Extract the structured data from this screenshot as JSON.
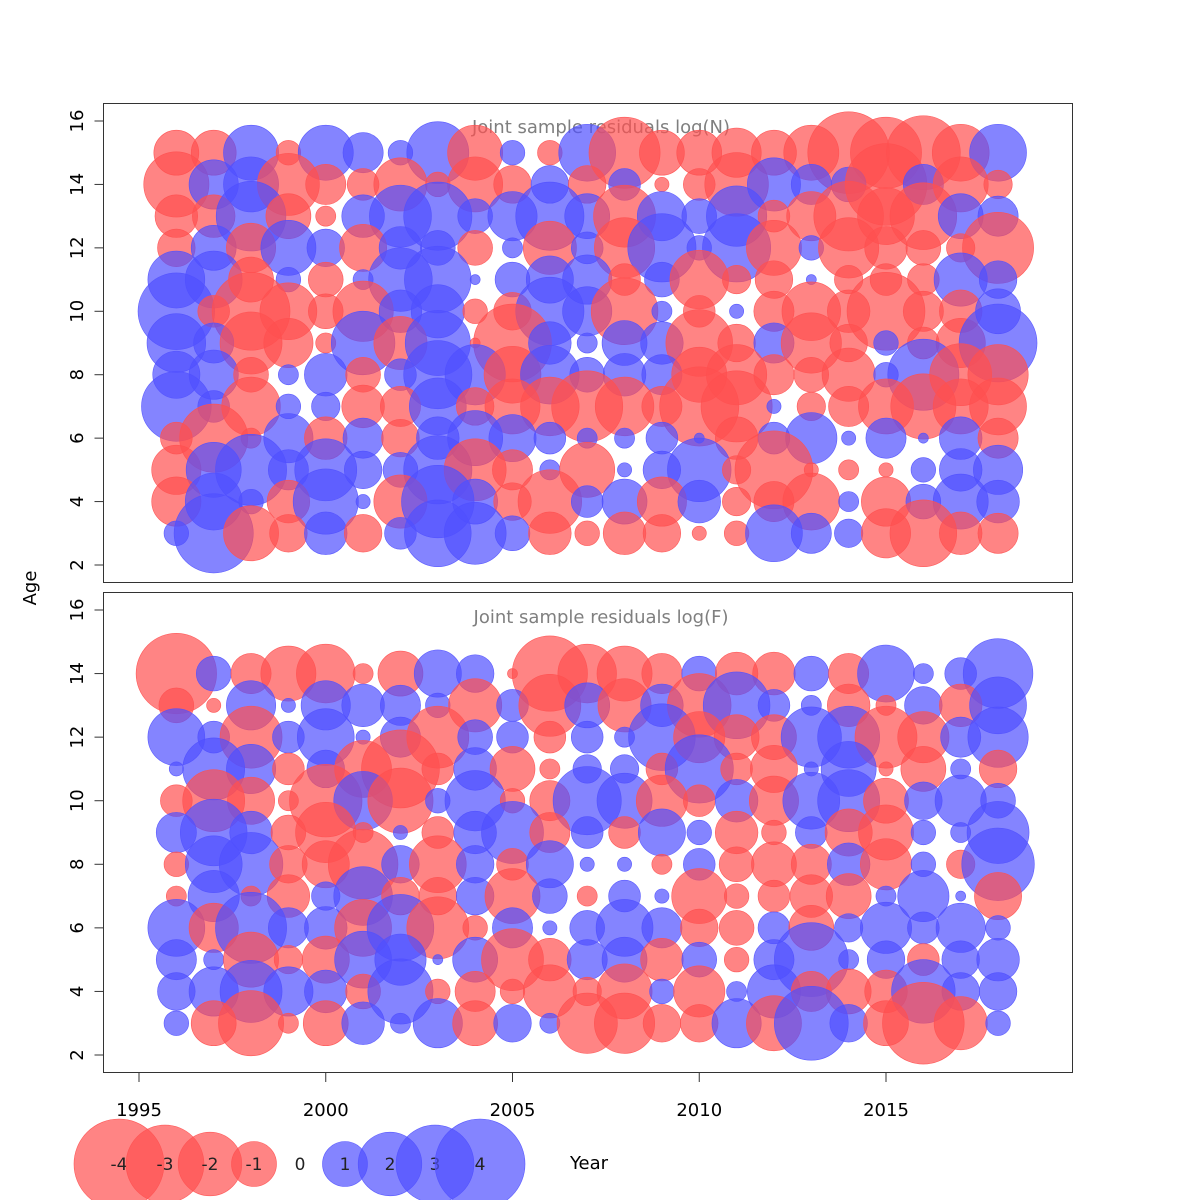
{
  "chart_data": {
    "type": "scatter",
    "subtype": "bubble",
    "xlabel": "Year",
    "ylabel": "Age",
    "xlim": [
      1994,
      2020
    ],
    "ylim": [
      1.5,
      16.5
    ],
    "x_ticks": [
      1995,
      2000,
      2005,
      2010,
      2015
    ],
    "y_ticks": [
      2,
      4,
      6,
      8,
      10,
      12,
      14,
      16
    ],
    "years": [
      1996,
      1997,
      1998,
      1999,
      2000,
      2001,
      2002,
      2003,
      2004,
      2005,
      2006,
      2007,
      2008,
      2009,
      2010,
      2011,
      2012,
      2013,
      2014,
      2015,
      2016,
      2017,
      2018
    ],
    "colors": {
      "positive": "#5050ff",
      "negative": "#ff5050"
    },
    "legend": {
      "values": [
        -4,
        -3,
        -2,
        -1,
        0,
        1,
        2,
        3,
        4
      ],
      "labels": [
        "-4",
        "-3",
        "-2",
        "-1",
        "0",
        "1",
        "2",
        "3",
        "4"
      ],
      "placement": "bottom"
    },
    "panels": [
      {
        "title": "Joint sample residuals log(N)",
        "ages": [
          15,
          14,
          13,
          12,
          11,
          10,
          9,
          8,
          7,
          6,
          5,
          4,
          3
        ],
        "residuals": [
          [
            -1.0,
            -1.0,
            1.5,
            -0.3,
            1.5,
            0.8,
            0.3,
            1.9,
            -1.5,
            0.3,
            -0.3,
            1.6,
            -2.5,
            -1.0,
            -1.0,
            -1.2,
            -1.0,
            -1.5,
            -3.3,
            -2.5,
            -2.7,
            -1.6,
            1.6
          ],
          [
            -2.1,
            1.2,
            1.5,
            -1.9,
            -0.8,
            -0.5,
            -1.4,
            -0.3,
            -1.5,
            -0.7,
            0.7,
            -0.7,
            0.5,
            -0.1,
            -0.5,
            -2.0,
            1.4,
            0.8,
            0.6,
            -3.3,
            0.8,
            -1.5,
            -0.4
          ],
          [
            -0.9,
            -0.9,
            2.4,
            -1.0,
            -0.2,
            0.9,
            1.9,
            2.3,
            0.6,
            1.2,
            2.3,
            1.0,
            -1.9,
            1.2,
            0.6,
            1.8,
            -0.5,
            -1.2,
            -2.4,
            -1.6,
            -2.2,
            1.0,
            0.8
          ],
          [
            -0.7,
            1.0,
            -1.2,
            1.5,
            0.7,
            -1.1,
            0.9,
            0.6,
            -0.6,
            0.2,
            -1.4,
            0.5,
            -1.8,
            2.3,
            0.3,
            2.3,
            -1.5,
            0.3,
            -1.8,
            -0.9,
            -0.6,
            -0.4,
            -2.5
          ],
          [
            1.6,
            1.6,
            -1.0,
            0.3,
            -0.6,
            0.2,
            2.0,
            2.2,
            0.05,
            0.6,
            1.1,
            1.2,
            -0.5,
            0.6,
            -1.7,
            -0.4,
            -0.7,
            0.05,
            -0.4,
            -0.5,
            -0.5,
            1.4,
            0.7
          ],
          [
            2.9,
            -0.5,
            -3.0,
            -1.6,
            -0.6,
            -1.8,
            0.9,
            1.4,
            -0.3,
            -0.7,
            2.3,
            1.2,
            -2.2,
            0.2,
            -0.5,
            0.1,
            -0.8,
            -1.7,
            -0.9,
            -3.0,
            -0.8,
            -0.9,
            1.0
          ],
          [
            1.7,
            0.8,
            -1.9,
            -1.2,
            -0.2,
            2.0,
            -1.4,
            2.1,
            -0.05,
            -3.0,
            0.9,
            0.2,
            1.0,
            0.9,
            -2.2,
            -0.7,
            0.8,
            -1.8,
            -0.7,
            0.3,
            -0.5,
            -1.2,
            3.0
          ],
          [
            1.1,
            1.2,
            -0.6,
            0.2,
            0.9,
            -0.6,
            0.5,
            2.3,
            1.8,
            -1.6,
            1.7,
            0.6,
            0.9,
            0.8,
            -1.5,
            -1.8,
            -0.8,
            -0.6,
            -1.4,
            0.3,
            2.5,
            -1.9,
            -1.8
          ],
          [
            2.4,
            0.5,
            -1.7,
            0.3,
            0.4,
            -0.9,
            -0.8,
            1.6,
            -0.7,
            -1.5,
            -1.7,
            -2.5,
            -1.7,
            -0.8,
            -3.1,
            -2.5,
            0.1,
            -0.4,
            -0.8,
            -1.5,
            -2.1,
            -1.5,
            -1.6
          ],
          [
            -0.5,
            -2.3,
            -0.2,
            1.2,
            -0.9,
            0.8,
            -0.7,
            0.9,
            1.5,
            1.1,
            0.5,
            0.2,
            0.2,
            0.5,
            0.05,
            -0.9,
            0.5,
            1.3,
            0.1,
            0.8,
            0.05,
            0.9,
            -0.8
          ],
          [
            -1.2,
            1.5,
            2.5,
            0.8,
            1.9,
            0.7,
            0.6,
            2.3,
            -1.9,
            -0.8,
            0.2,
            -1.5,
            0.1,
            0.7,
            2.0,
            -0.4,
            -3.0,
            -0.1,
            -0.2,
            -0.1,
            0.3,
            0.9,
            1.2
          ],
          [
            -1.2,
            1.6,
            0.3,
            -0.9,
            2.1,
            0.1,
            -1.4,
            2.6,
            1.0,
            -0.7,
            -2.0,
            0.5,
            1.0,
            -1.2,
            0.9,
            -0.4,
            -0.8,
            -1.6,
            0.2,
            -1.2,
            0.6,
            1.5,
            0.9
          ],
          [
            0.3,
            3.1,
            -1.5,
            -0.7,
            0.9,
            -0.7,
            0.5,
            2.2,
            1.9,
            0.6,
            -0.9,
            -0.3,
            -0.9,
            -0.7,
            -0.1,
            -0.3,
            1.6,
            0.8,
            0.4,
            -1.2,
            -2.2,
            -0.9,
            -0.8
          ]
        ]
      },
      {
        "title": "Joint sample residuals log(F)",
        "ages": [
          14,
          13,
          12,
          11,
          10,
          9,
          8,
          7,
          6,
          5,
          4,
          3
        ],
        "residuals": [
          [
            -3.2,
            0.6,
            -0.8,
            -1.5,
            -1.7,
            -0.2,
            -1.0,
            1.1,
            0.7,
            -0.05,
            -2.8,
            -1.7,
            -1.5,
            -0.8,
            0.6,
            -0.9,
            -0.9,
            0.6,
            -0.8,
            1.6,
            0.2,
            0.5,
            2.4
          ],
          [
            -0.6,
            -0.1,
            1.2,
            0.1,
            1.2,
            0.9,
            0.8,
            0.3,
            -1.4,
            0.5,
            -1.9,
            1.0,
            -1.4,
            0.9,
            -2.0,
            2.2,
            0.5,
            0.2,
            -0.9,
            -0.2,
            0.7,
            -0.9,
            1.6
          ],
          [
            1.6,
            0.5,
            -1.9,
            0.5,
            1.6,
            0.1,
            0.8,
            -1.9,
            0.6,
            0.5,
            -0.5,
            0.5,
            0.2,
            2.2,
            -1.3,
            -1.0,
            -1.0,
            1.8,
            1.9,
            -1.9,
            -1.3,
            0.8,
            1.8
          ],
          [
            0.1,
            1.9,
            1.2,
            -0.5,
            0.7,
            -1.6,
            -3.0,
            -0.5,
            0.9,
            -1.0,
            -0.2,
            0.4,
            0.4,
            -0.5,
            2.3,
            -0.5,
            -1.1,
            0.1,
            1.5,
            -0.1,
            -1.0,
            0.2,
            -0.7
          ],
          [
            -0.5,
            -1.9,
            -1.1,
            -0.2,
            -2.6,
            1.7,
            -2.1,
            0.3,
            1.8,
            -0.3,
            -0.8,
            2.3,
            1.5,
            -1.3,
            -0.5,
            0.9,
            -1.2,
            1.6,
            1.9,
            -1.0,
            0.7,
            1.3,
            0.6
          ],
          [
            0.8,
            2.2,
            0.9,
            -0.6,
            -1.8,
            -0.2,
            0.1,
            -0.5,
            0.9,
            1.9,
            -0.8,
            0.5,
            -0.5,
            1.1,
            0.3,
            -0.9,
            -0.3,
            0.5,
            -1.1,
            -1.5,
            0.3,
            0.2,
            1.9
          ],
          [
            -0.3,
            1.6,
            2.0,
            -0.7,
            -1.1,
            -2.4,
            0.7,
            -1.6,
            0.7,
            -0.5,
            1.1,
            0.1,
            0.1,
            -0.2,
            0.5,
            -0.6,
            -1.0,
            -0.8,
            0.9,
            -1.3,
            0.3,
            -0.4,
            2.6
          ],
          [
            -0.2,
            1.3,
            -0.2,
            -0.9,
            0.4,
            1.7,
            -0.7,
            -0.7,
            0.7,
            -1.5,
            0.6,
            -0.2,
            0.5,
            0.1,
            -1.5,
            -0.3,
            -0.5,
            -0.9,
            -1.0,
            0.2,
            1.3,
            0.05,
            -1.1
          ],
          [
            1.6,
            -1.2,
            2.5,
            0.8,
            0.9,
            -1.6,
            2.2,
            -1.9,
            -0.3,
            0.8,
            0.1,
            0.6,
            1.6,
            0.8,
            -0.7,
            -0.6,
            0.5,
            -1.0,
            0.4,
            1.3,
            0.5,
            1.2,
            0.3
          ],
          [
            0.8,
            0.2,
            -1.5,
            -0.4,
            -1.1,
            1.6,
            1.3,
            0.05,
            1.0,
            -1.9,
            -0.9,
            0.8,
            1.0,
            -0.9,
            0.6,
            -0.3,
            0.8,
            2.7,
            0.2,
            0.7,
            -0.5,
            0.7,
            0.9
          ],
          [
            0.7,
            1.2,
            1.9,
            1.2,
            0.9,
            -0.6,
            2.1,
            -0.3,
            -0.8,
            -0.3,
            -1.4,
            -0.4,
            -1.5,
            0.3,
            -1.3,
            0.2,
            1.4,
            -0.8,
            -1.0,
            -0.9,
            2.0,
            0.7,
            0.7
          ],
          [
            0.3,
            -1.0,
            -2.1,
            -0.2,
            -1.0,
            0.9,
            0.2,
            1.2,
            -1.0,
            0.7,
            0.2,
            -1.8,
            -1.8,
            -0.7,
            -0.7,
            1.2,
            -1.5,
            2.7,
            0.7,
            -1.0,
            -3.3,
            -1.4,
            0.3
          ]
        ]
      }
    ]
  }
}
